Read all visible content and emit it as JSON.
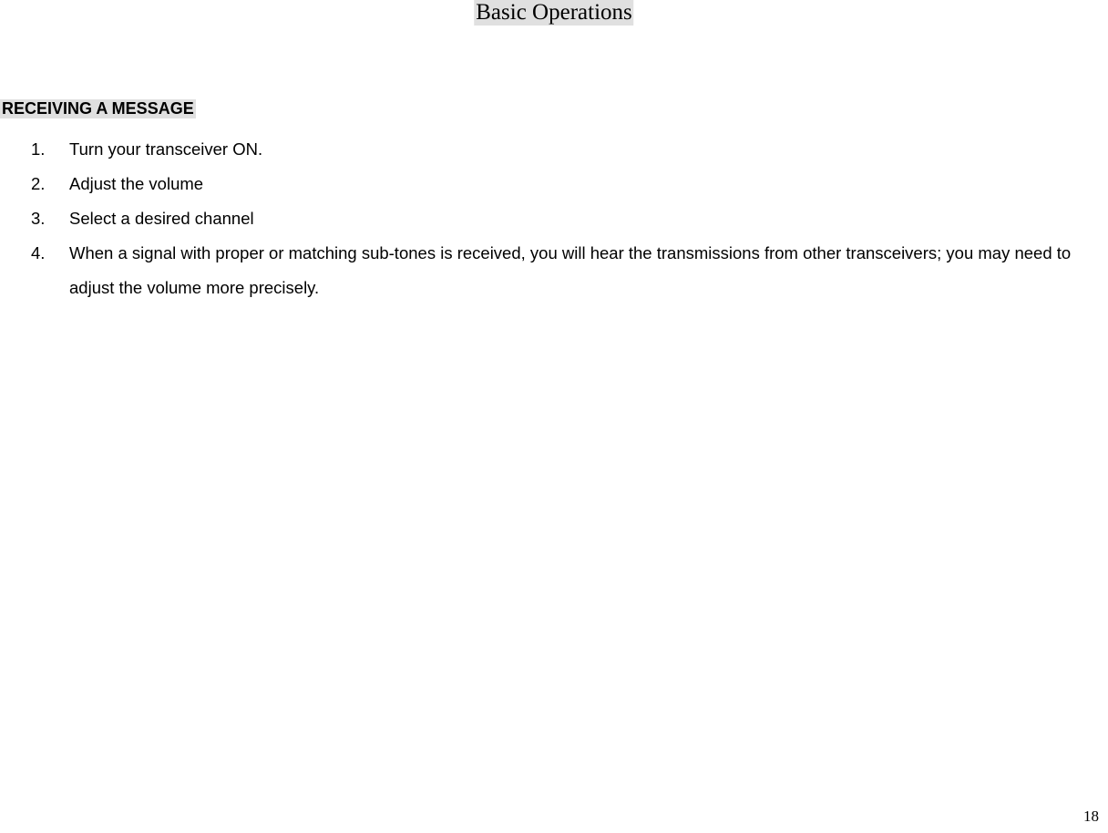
{
  "title": "Basic Operations",
  "section_heading": "RECEIVING A MESSAGE",
  "list": {
    "items": [
      {
        "num": "1.",
        "text": "Turn your transceiver ON."
      },
      {
        "num": "2.",
        "text": "Adjust the volume"
      },
      {
        "num": "3.",
        "text": "Select a desired channel"
      },
      {
        "num": "4.",
        "text": "When a signal with proper or matching sub-tones is received, you will hear the transmissions from other transceivers; you may need to adjust the volume more precisely."
      }
    ]
  },
  "page_number": "18",
  "colors": {
    "background": "#ffffff",
    "highlight": "#e0e0e0",
    "text": "#000000"
  }
}
